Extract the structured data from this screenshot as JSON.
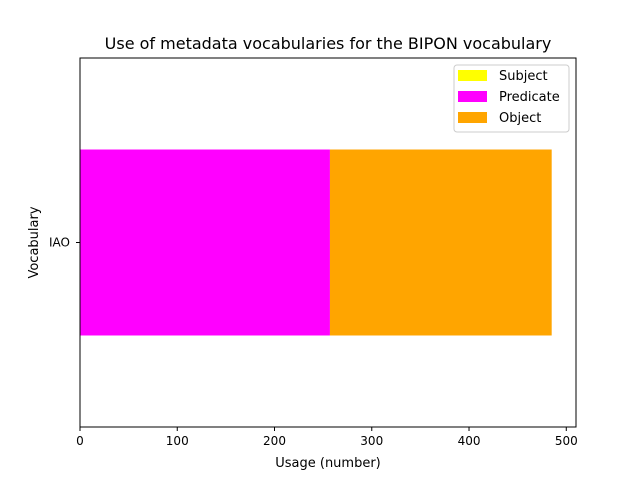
{
  "chart_data": {
    "type": "bar",
    "orientation": "horizontal",
    "stacked": true,
    "title": "Use of metadata vocabularies for the BIPON vocabulary",
    "xlabel": "Usage (number)",
    "ylabel": "Vocabulary",
    "categories": [
      "IAO"
    ],
    "xlim": [
      0,
      510
    ],
    "xticks": [
      0,
      100,
      200,
      300,
      400,
      500
    ],
    "series": [
      {
        "name": "Subject",
        "color": "#ffff00",
        "values": [
          0
        ]
      },
      {
        "name": "Predicate",
        "color": "#ff00ff",
        "values": [
          257
        ]
      },
      {
        "name": "Object",
        "color": "#ffa500",
        "values": [
          228
        ]
      }
    ],
    "legend_position": "top-right",
    "grid": false
  }
}
